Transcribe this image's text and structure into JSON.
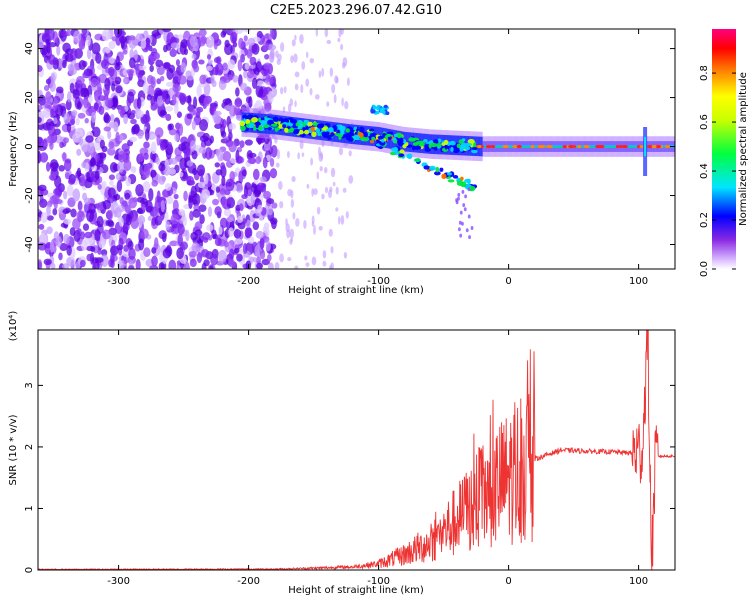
{
  "title": "C2E5.2023.296.07.42.G10",
  "chart_data": [
    {
      "type": "heatmap",
      "xlabel": "Height of straight line (km)",
      "ylabel": "Frequency (Hz)",
      "xlim": [
        -362,
        128
      ],
      "ylim": [
        -50,
        48
      ],
      "xticks": [
        -300,
        -200,
        -100,
        0,
        100
      ],
      "yticks": [
        -40,
        -20,
        0,
        20,
        40
      ],
      "colorbar": {
        "label": "Normalized spectral amplitude",
        "range": [
          0,
          0.98
        ],
        "ticks": [
          "0.0",
          "0.2",
          "0.4",
          "0.6",
          "0.8"
        ],
        "colormap": "rainbow"
      },
      "features": {
        "noise_region_x": [
          -362,
          -180
        ],
        "carrier_start_x": -205,
        "carrier_end_x": 128,
        "carrier_freq_hz": [
          {
            "x": -205,
            "y": 10
          },
          {
            "x": -180,
            "y": 9
          },
          {
            "x": -150,
            "y": 7
          },
          {
            "x": -120,
            "y": 5
          },
          {
            "x": -100,
            "y": 4
          },
          {
            "x": -80,
            "y": 2
          },
          {
            "x": -60,
            "y": 1
          },
          {
            "x": -40,
            "y": 0.5
          },
          {
            "x": -20,
            "y": 0
          },
          {
            "x": 128,
            "y": 0
          }
        ]
      }
    },
    {
      "type": "line",
      "xlabel": "Height of straight line (km)",
      "ylabel": "SNR (10 * v/v)",
      "y_multiplier": "(x10⁴)",
      "xlim": [
        -362,
        128
      ],
      "ylim": [
        0,
        3.9
      ],
      "xticks": [
        -300,
        -200,
        -100,
        0,
        100
      ],
      "yticks": [
        0,
        1,
        2,
        3
      ],
      "color": "#ee3333",
      "envelope": [
        {
          "x": -362,
          "y": 0.01
        },
        {
          "x": -180,
          "y": 0.015
        },
        {
          "x": -150,
          "y": 0.03
        },
        {
          "x": -120,
          "y": 0.05
        },
        {
          "x": -100,
          "y": 0.1
        },
        {
          "x": -80,
          "y": 0.25
        },
        {
          "x": -60,
          "y": 0.45
        },
        {
          "x": -40,
          "y": 0.8
        },
        {
          "x": -20,
          "y": 1.2
        },
        {
          "x": 0,
          "y": 1.5
        },
        {
          "x": 20,
          "y": 1.8
        },
        {
          "x": 40,
          "y": 1.95
        },
        {
          "x": 60,
          "y": 1.93
        },
        {
          "x": 80,
          "y": 1.92
        },
        {
          "x": 95,
          "y": 1.9
        },
        {
          "x": 103,
          "y": 1.95
        },
        {
          "x": 107,
          "y": 3.9
        },
        {
          "x": 110,
          "y": 0.1
        },
        {
          "x": 113,
          "y": 1.85
        },
        {
          "x": 128,
          "y": 1.85
        }
      ]
    }
  ]
}
